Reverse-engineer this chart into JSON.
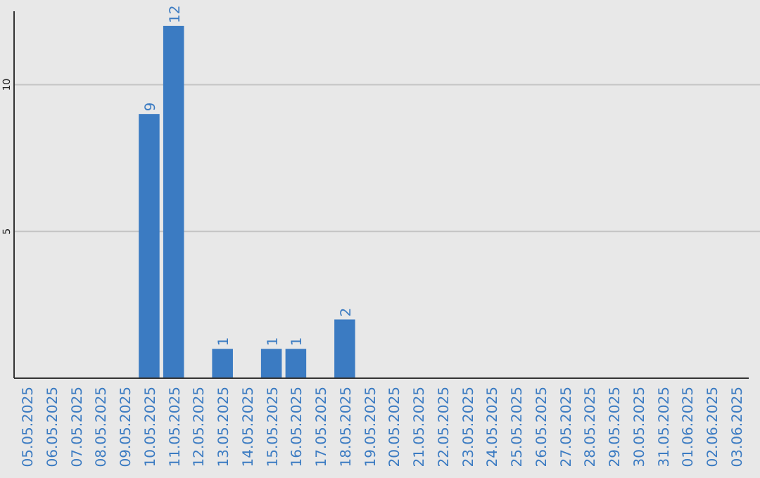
{
  "chart_data": {
    "type": "bar",
    "categories": [
      "05.05.2025",
      "06.05.2025",
      "07.05.2025",
      "08.05.2025",
      "09.05.2025",
      "10.05.2025",
      "11.05.2025",
      "12.05.2025",
      "13.05.2025",
      "14.05.2025",
      "15.05.2025",
      "16.05.2025",
      "17.05.2025",
      "18.05.2025",
      "19.05.2025",
      "20.05.2025",
      "21.05.2025",
      "22.05.2025",
      "23.05.2025",
      "24.05.2025",
      "25.05.2025",
      "26.05.2025",
      "27.05.2025",
      "28.05.2025",
      "29.05.2025",
      "30.05.2025",
      "31.05.2025",
      "01.06.2025",
      "02.06.2025",
      "03.06.2025"
    ],
    "values": [
      null,
      null,
      null,
      null,
      null,
      9,
      12,
      null,
      1,
      null,
      1,
      1,
      null,
      2,
      null,
      null,
      null,
      null,
      null,
      null,
      null,
      null,
      null,
      null,
      null,
      null,
      null,
      null,
      null,
      null
    ],
    "color": "#3b7bc2",
    "ylim": [
      0,
      12.5
    ],
    "yticks": [
      5,
      10
    ],
    "grid": "y",
    "data_labels": true
  }
}
